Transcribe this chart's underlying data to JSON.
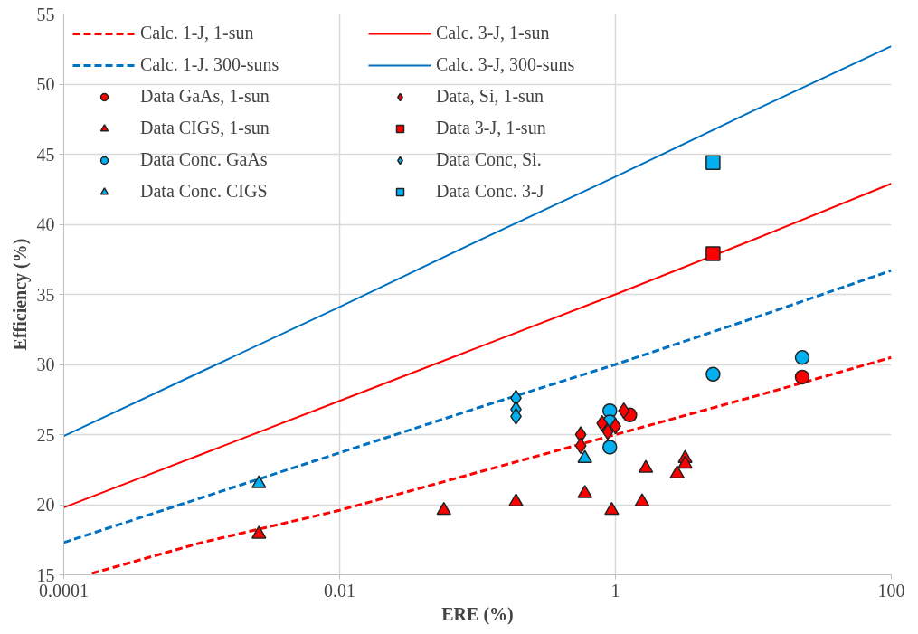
{
  "chart_data": {
    "type": "scatter",
    "xlabel": "ERE (%)",
    "ylabel": "Efficiency (%)",
    "log": "x",
    "xlim": [
      0.0001,
      100
    ],
    "xticks": [
      0.0001,
      0.01,
      1,
      100
    ],
    "ylim": [
      15,
      55
    ],
    "yticks": [
      15,
      20,
      25,
      30,
      35,
      40,
      45,
      50,
      55
    ],
    "grid": true,
    "legend": "top left",
    "series": [
      {
        "name": "Calc. 1-J, 1-sun",
        "type": "line",
        "line_style": "dashed",
        "color": "#ff0000",
        "x": [
          0.00016,
          0.001,
          0.01,
          0.1,
          1,
          10,
          100
        ],
        "values": [
          15.1,
          17.3,
          19.6,
          22.3,
          25.0,
          27.7,
          30.5
        ]
      },
      {
        "name": "Calc. 1-J. 300-suns",
        "type": "line",
        "line_style": "dashed",
        "color": "#0070c0",
        "x": [
          0.0001,
          0.001,
          0.01,
          0.1,
          1,
          10,
          100
        ],
        "values": [
          17.3,
          20.5,
          23.7,
          26.9,
          30.0,
          33.3,
          36.7
        ]
      },
      {
        "name": "Data GaAs, 1-sun",
        "marker": "circle",
        "color": "#ff0000",
        "x": [
          1.27,
          22.6
        ],
        "values": [
          26.4,
          29.1
        ]
      },
      {
        "name": "Data CIGS, 1-sun",
        "marker": "triangle",
        "color": "#ff0000",
        "x": [
          0.0026,
          0.057,
          0.19,
          0.6,
          0.94,
          1.56,
          1.66,
          2.8,
          3.2,
          3.2
        ],
        "values": [
          17.9,
          19.6,
          20.2,
          20.8,
          19.6,
          20.2,
          22.6,
          22.2,
          23.3,
          22.9
        ]
      },
      {
        "name": "Data Conc. GaAs",
        "marker": "circle",
        "color": "#00b0f0",
        "x": [
          0.91,
          0.91,
          0.91,
          5.1,
          22.6
        ],
        "values": [
          26.7,
          25.9,
          24.1,
          29.3,
          30.5
        ]
      },
      {
        "name": "Data Conc. CIGS",
        "marker": "triangle",
        "color": "#00b0f0",
        "x": [
          0.0026,
          0.6
        ],
        "values": [
          21.5,
          23.3
        ]
      },
      {
        "name": "Calc. 3-J, 1-sun",
        "type": "line",
        "line_style": "solid",
        "color": "#ff0000",
        "x": [
          0.0001,
          0.001,
          0.01,
          0.1,
          1,
          10,
          100
        ],
        "values": [
          19.8,
          23.6,
          27.4,
          31.2,
          35.0,
          38.9,
          42.9
        ]
      },
      {
        "name": "Calc. 3-J, 300-suns",
        "type": "line",
        "line_style": "solid",
        "color": "#0070c0",
        "x": [
          0.0001,
          0.001,
          0.01,
          0.1,
          1,
          10,
          100
        ],
        "values": [
          24.9,
          29.5,
          34.1,
          38.8,
          43.4,
          48.1,
          52.7
        ]
      },
      {
        "name": "Data, Si, 1-sun",
        "marker": "diamond",
        "color": "#ff0000",
        "x": [
          0.56,
          0.56,
          0.8,
          0.88,
          1.0,
          1.15
        ],
        "values": [
          25.0,
          24.2,
          25.8,
          25.2,
          25.6,
          26.7
        ]
      },
      {
        "name": "Data 3-J, 1-sun",
        "marker": "square",
        "color": "#ff0000",
        "x": [
          5.1
        ],
        "values": [
          37.9
        ]
      },
      {
        "name": "Data Conc, Si.",
        "marker": "diamond",
        "color": "#00b0f0",
        "x": [
          0.19,
          0.19,
          0.19
        ],
        "values": [
          27.6,
          26.8,
          26.3
        ]
      },
      {
        "name": "Data Conc. 3-J",
        "marker": "square",
        "color": "#00b0f0",
        "x": [
          5.1
        ],
        "values": [
          44.4
        ]
      }
    ]
  }
}
